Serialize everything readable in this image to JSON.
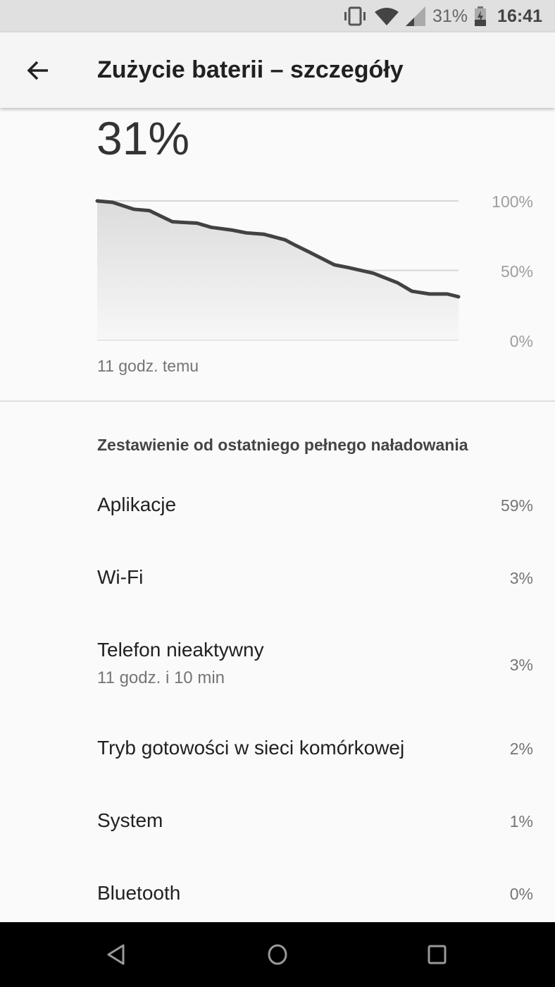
{
  "status_bar": {
    "battery_percent": "31%",
    "time": "16:41",
    "icons": [
      "vibrate-icon",
      "wifi-icon",
      "cell-signal-icon",
      "battery-charging-icon"
    ]
  },
  "app_bar": {
    "title": "Zużycie baterii – szczegóły",
    "back_icon": "arrow-back-icon"
  },
  "battery_level": "31%",
  "chart_data": {
    "type": "area",
    "x_unit": "hours",
    "x": [
      0,
      0.47,
      1.12,
      1.59,
      2.29,
      3.04,
      3.47,
      4.11,
      4.54,
      5.08,
      5.72,
      6.04,
      6.47,
      7.22,
      7.65,
      8.4,
      9.15,
      9.58,
      10.12,
      10.66,
      11
    ],
    "y": [
      100,
      99,
      94,
      93,
      85,
      84,
      81,
      79,
      77,
      76,
      72,
      68,
      63,
      54,
      52,
      48,
      41,
      35,
      33,
      33,
      31
    ],
    "ylim": [
      0,
      100
    ],
    "y_ticks": [
      "100%",
      "50%",
      "0%"
    ],
    "x_label": "11 godz. temu",
    "grid": true,
    "line_color": "#424242"
  },
  "section_title": "Zestawienie od ostatniego pełnego naładowania",
  "items": [
    {
      "label": "Aplikacje",
      "value": "59%"
    },
    {
      "label": "Wi-Fi",
      "value": "3%"
    },
    {
      "label": "Telefon nieaktywny",
      "sub": "11 godz. i 10 min",
      "value": "3%"
    },
    {
      "label": "Tryb gotowości w sieci komórkowej",
      "value": "2%"
    },
    {
      "label": "System",
      "value": "1%"
    },
    {
      "label": "Bluetooth",
      "value": "0%"
    }
  ],
  "nav_bar": {
    "buttons": [
      "back-icon",
      "home-icon",
      "recents-icon"
    ]
  }
}
